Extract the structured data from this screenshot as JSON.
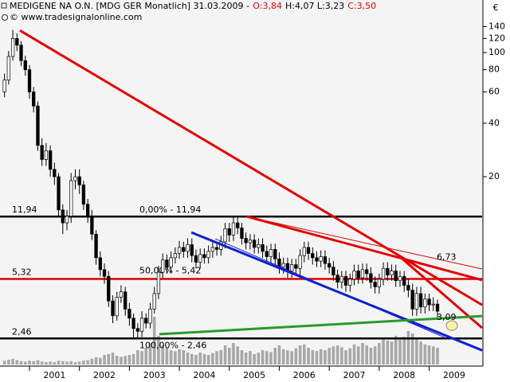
{
  "chart_data": {
    "type": "candlestick",
    "title": "MEDIGENE NA O.N. [MDG GER  Monatlich] 31.03.2009 -",
    "header_labels": [
      {
        "text": "O:3,84",
        "color": "#e00000"
      },
      {
        "text": "H:4,07 L:3,23",
        "color": "#000000"
      },
      {
        "text": "C:3,50",
        "color": "#e00000"
      }
    ],
    "subtitle": "© www.tradesignalonline.com",
    "currency": "€",
    "log_scale": true,
    "xlim": [
      2000.41,
      2010.06
    ],
    "xticks": [
      2001,
      2002,
      2003,
      2004,
      2005,
      2006,
      2007,
      2008,
      2009
    ],
    "ylim": [
      1.72,
      164
    ],
    "yticks": [
      140,
      120,
      100,
      80,
      60,
      40,
      20
    ],
    "x": [
      2000.5,
      2000.583,
      2000.667,
      2000.75,
      2000.833,
      2000.917,
      2001,
      2001.083,
      2001.167,
      2001.25,
      2001.333,
      2001.417,
      2001.5,
      2001.583,
      2001.667,
      2001.75,
      2001.833,
      2001.917,
      2002,
      2002.083,
      2002.167,
      2002.25,
      2002.333,
      2002.417,
      2002.5,
      2002.583,
      2002.667,
      2002.75,
      2002.833,
      2002.917,
      2003,
      2003.083,
      2003.167,
      2003.25,
      2003.333,
      2003.417,
      2003.5,
      2003.583,
      2003.667,
      2003.75,
      2003.833,
      2003.917,
      2004,
      2004.083,
      2004.167,
      2004.25,
      2004.333,
      2004.417,
      2004.5,
      2004.583,
      2004.667,
      2004.75,
      2004.833,
      2004.917,
      2005,
      2005.083,
      2005.167,
      2005.25,
      2005.333,
      2005.417,
      2005.5,
      2005.583,
      2005.667,
      2005.75,
      2005.833,
      2005.917,
      2006,
      2006.083,
      2006.167,
      2006.25,
      2006.333,
      2006.417,
      2006.5,
      2006.583,
      2006.667,
      2006.75,
      2006.833,
      2006.917,
      2007,
      2007.083,
      2007.167,
      2007.25,
      2007.333,
      2007.417,
      2007.5,
      2007.583,
      2007.667,
      2007.75,
      2007.833,
      2007.917,
      2008,
      2008.083,
      2008.167,
      2008.25,
      2008.333,
      2008.417,
      2008.5,
      2008.583,
      2008.667,
      2008.75,
      2008.833,
      2008.917,
      2009,
      2009.083,
      2009.167
    ],
    "open": [
      60,
      70,
      95,
      120,
      110,
      90,
      80,
      60,
      50,
      30,
      25,
      28,
      22,
      20,
      13,
      11,
      12,
      19,
      20,
      18,
      14,
      12,
      9.5,
      7,
      6,
      5.5,
      4,
      3.3,
      4.2,
      4.5,
      3.6,
      3.2,
      2.8,
      2.7,
      3.2,
      3,
      3.6,
      4.4,
      5.8,
      6.8,
      6.2,
      7,
      7.4,
      8,
      7.6,
      8.3,
      7.2,
      6.6,
      7.3,
      7,
      7.6,
      8,
      7.8,
      8.6,
      10.2,
      9.4,
      11,
      10.3,
      9,
      8.5,
      8.8,
      8,
      8.3,
      7.6,
      7.1,
      7.8,
      6.9,
      6.2,
      6.5,
      5.9,
      6.4,
      6.1,
      7.2,
      8,
      7.4,
      7,
      6.7,
      7.1,
      6.5,
      6.2,
      5.6,
      5.1,
      5.5,
      4.9,
      5.3,
      5.9,
      5.4,
      6,
      5.7,
      5.1,
      4.8,
      5.3,
      6.1,
      5.6,
      5.9,
      5.2,
      5.5,
      4.9,
      4.6,
      3.6,
      4.4,
      3.7,
      4.1,
      3.8,
      3.84
    ],
    "high": [
      76,
      102,
      134,
      128,
      116,
      96,
      85,
      64,
      53,
      33,
      31,
      30,
      24,
      21,
      14,
      13,
      21,
      22,
      22,
      19,
      15,
      13,
      10,
      7.6,
      6.5,
      5.9,
      4.3,
      4.5,
      4.9,
      4.8,
      3.9,
      3.4,
      3,
      3.5,
      3.4,
      3.9,
      4.8,
      6.3,
      7.4,
      7.3,
      7.6,
      8,
      8.7,
      8.6,
      9,
      9,
      7.8,
      7.9,
      7.9,
      8.2,
      8.6,
      8.6,
      9.3,
      11,
      11,
      11.94,
      11.8,
      11,
      9.7,
      9.5,
      9.5,
      9,
      9,
      8.2,
      8.4,
      8.4,
      7.5,
      7,
      7,
      6.9,
      6.9,
      7.8,
      8.6,
      8.6,
      8,
      7.6,
      7.7,
      7.7,
      7,
      6.7,
      6,
      5.9,
      5.9,
      5.7,
      6.4,
      6.4,
      6.5,
      6.5,
      6.2,
      5.5,
      5.7,
      6.6,
      6.6,
      6.4,
      6.4,
      5.9,
      5.9,
      5.3,
      5,
      4.8,
      4.8,
      4.4,
      4.4,
      4.2,
      4.07
    ],
    "low": [
      56,
      66,
      90,
      102,
      84,
      74,
      55,
      46,
      28,
      23,
      23,
      20,
      18,
      12,
      9.5,
      10,
      11,
      17,
      16,
      13,
      11,
      8.8,
      6.4,
      5.5,
      5,
      3.7,
      3,
      3.1,
      3.9,
      3.3,
      2.9,
      2.5,
      2.46,
      2.5,
      2.8,
      2.8,
      3.4,
      4.1,
      5.4,
      5.7,
      5.8,
      6.5,
      6.9,
      7,
      7,
      6.6,
      6.1,
      6.1,
      6.5,
      6.5,
      7,
      7.2,
      7.2,
      7.9,
      8.6,
      8.7,
      9.5,
      8.3,
      7.8,
      7.8,
      7.4,
      7.4,
      7,
      6.5,
      6.5,
      6.3,
      5.7,
      5.7,
      5.4,
      5.4,
      5.6,
      5.6,
      6.6,
      6.8,
      6.4,
      6.2,
      6.2,
      6,
      5.7,
      5.2,
      4.7,
      4.7,
      4.5,
      4.5,
      4.9,
      5,
      5,
      5.2,
      4.7,
      4.4,
      4.4,
      4.9,
      5.2,
      5.2,
      4.8,
      4.8,
      4.5,
      4.2,
      3.3,
      3.3,
      3.4,
      3.4,
      3.5,
      3.5,
      3.23
    ],
    "close": [
      70,
      95,
      120,
      110,
      90,
      80,
      60,
      50,
      30,
      25,
      28,
      22,
      20,
      13,
      11,
      12,
      19,
      20,
      18,
      14,
      12,
      9.5,
      7,
      6,
      5.5,
      4,
      3.3,
      4.2,
      4.5,
      3.6,
      3.2,
      2.8,
      2.7,
      3.2,
      3,
      3.6,
      4.4,
      5.8,
      6.8,
      6.2,
      7,
      7.4,
      8,
      7.6,
      8.3,
      7.2,
      6.6,
      7.3,
      7,
      7.6,
      8,
      7.8,
      8.6,
      10.2,
      9.4,
      11,
      10.3,
      9,
      8.5,
      8.8,
      8,
      8.3,
      7.6,
      7.1,
      7.8,
      6.9,
      6.2,
      6.5,
      5.9,
      6.4,
      6.1,
      7.2,
      8,
      7.4,
      7,
      6.7,
      7.1,
      6.5,
      6.2,
      5.6,
      5.1,
      5.5,
      4.9,
      5.3,
      5.9,
      5.4,
      6,
      5.7,
      5.1,
      4.8,
      5.3,
      6.1,
      5.6,
      5.9,
      5.2,
      5.5,
      4.9,
      4.6,
      3.6,
      4.4,
      3.7,
      4.1,
      3.8,
      3.84,
      3.5
    ],
    "volume": [
      8,
      10,
      12,
      9,
      7,
      6,
      8,
      7,
      9,
      6,
      5,
      6,
      5,
      8,
      7,
      6,
      7,
      5,
      6,
      8,
      9,
      12,
      15,
      14,
      20,
      22,
      25,
      18,
      16,
      18,
      20,
      22,
      30,
      28,
      35,
      45,
      100,
      60,
      40,
      35,
      30,
      28,
      32,
      30,
      25,
      22,
      20,
      25,
      22,
      20,
      24,
      28,
      30,
      40,
      35,
      45,
      38,
      30,
      25,
      28,
      22,
      25,
      30,
      28,
      26,
      35,
      40,
      32,
      30,
      28,
      34,
      40,
      42,
      35,
      30,
      28,
      32,
      30,
      35,
      38,
      40,
      36,
      30,
      34,
      42,
      38,
      45,
      40,
      35,
      38,
      45,
      55,
      50,
      48,
      60,
      52,
      58,
      70,
      65,
      55,
      48,
      42,
      40,
      38,
      35
    ],
    "up_color": "#ffffff",
    "down_color": "#000000",
    "volume_color": "#a8a8a8",
    "levels": [
      {
        "value": 11.94,
        "label": "11,94",
        "color": "#000000"
      },
      {
        "value": 5.32,
        "label": "5,32",
        "color": "#e00000"
      },
      {
        "value": 2.46,
        "label": "2,46",
        "color": "#000000"
      }
    ],
    "fib_labels": [
      {
        "text": "0,00% - 11,94",
        "value": 11.94
      },
      {
        "text": "50,00% - 5,42",
        "value": 5.42
      },
      {
        "text": "100,00% - 2,46",
        "value": 2.46
      }
    ],
    "trendlines": [
      {
        "color": "#e00000",
        "width": 3,
        "x": [
          2000.81,
          2010.06
        ],
        "y": [
          133,
          3.8
        ]
      },
      {
        "color": "#e00000",
        "width": 3,
        "x": [
          2005.35,
          2010.06
        ],
        "y": [
          11.94,
          5.24
        ]
      },
      {
        "color": "#e00000",
        "width": 1,
        "x": [
          2005.35,
          2010.06
        ],
        "y": [
          11.94,
          6.05
        ]
      },
      {
        "color": "#e00000",
        "width": 3,
        "x": [
          2008.46,
          2010.06
        ],
        "y": [
          6.92,
          2.82
        ]
      },
      {
        "color": "#1020d0",
        "width": 3,
        "x": [
          2004.24,
          2010.06
        ],
        "y": [
          9.72,
          2.11
        ]
      },
      {
        "color": "#1020d0",
        "width": 1,
        "x": [
          2004.72,
          2009.34
        ],
        "y": [
          8.95,
          2.47
        ]
      },
      {
        "color": "#2a9a2a",
        "width": 3,
        "x": [
          2003.6,
          2010.06
        ],
        "y": [
          2.6,
          3.29
        ]
      }
    ],
    "annotations": [
      {
        "text": "6,73",
        "value": 6.73,
        "color": "#e00000"
      },
      {
        "text": "3,09",
        "value": 3.09,
        "color": "#2a9a2a"
      }
    ]
  }
}
